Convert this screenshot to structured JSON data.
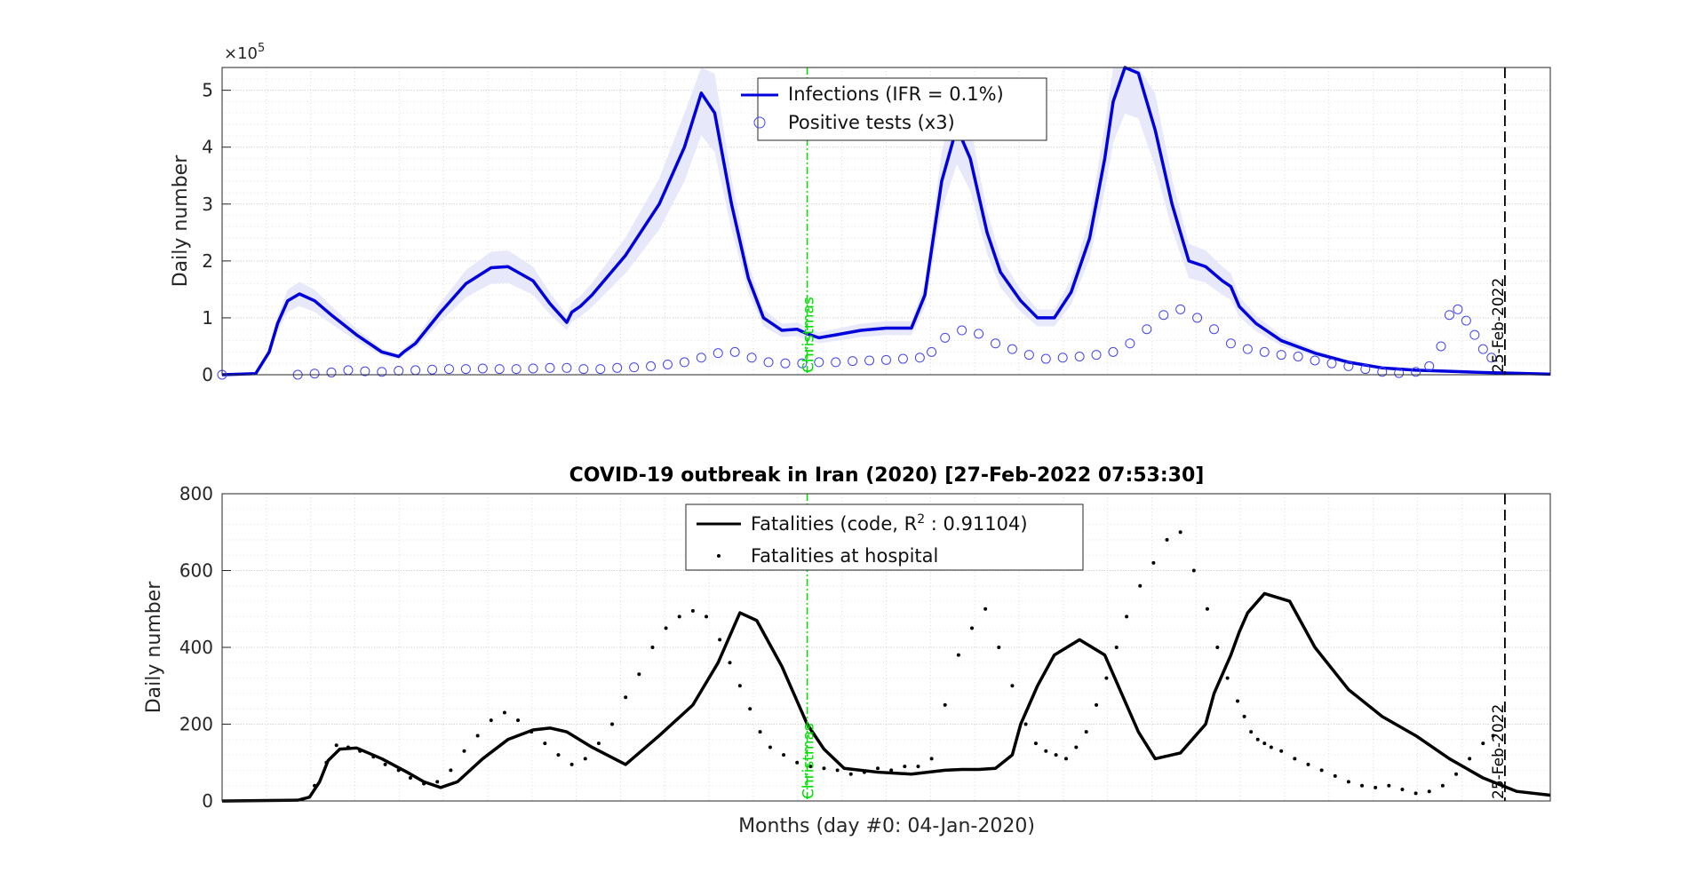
{
  "chart_data": [
    {
      "type": "line",
      "panel": "top",
      "title": "",
      "xlabel": "",
      "ylabel": "Daily number",
      "y_multiplier": "×10",
      "y_multiplier_exp": "5",
      "xlim": [
        0,
        790
      ],
      "ylim": [
        0,
        5.4
      ],
      "yticks": [
        0,
        1,
        2,
        3,
        4,
        5
      ],
      "grid": true,
      "legend_position": "top-center",
      "colors": {
        "line": "#0000dd",
        "band": "#e8e8fb",
        "markers": "#4444ee",
        "christmas": "#00dd00",
        "marker_line": "#000000"
      },
      "series": [
        {
          "name": "Infections (IFR = 0.1%)",
          "style": "line",
          "x": [
            0,
            20,
            28,
            33,
            39,
            46,
            55,
            65,
            80,
            95,
            105,
            108,
            115,
            130,
            145,
            160,
            170,
            185,
            195,
            205,
            208,
            213,
            220,
            240,
            260,
            275,
            285,
            293,
            303,
            313,
            322,
            333,
            342,
            348,
            355,
            365,
            380,
            395,
            410,
            418,
            422,
            428,
            437,
            445,
            455,
            463,
            475,
            485,
            495,
            505,
            516,
            525,
            530,
            537,
            545,
            555,
            565,
            575,
            585,
            595,
            600,
            605,
            615,
            630,
            650,
            670,
            690,
            710,
            730,
            750,
            770,
            790
          ],
          "y": [
            0,
            0.02,
            0.4,
            0.9,
            1.3,
            1.42,
            1.3,
            1.05,
            0.7,
            0.4,
            0.32,
            0.4,
            0.55,
            1.1,
            1.6,
            1.88,
            1.9,
            1.65,
            1.25,
            0.92,
            1.1,
            1.2,
            1.4,
            2.1,
            3.0,
            4.0,
            4.95,
            4.6,
            3.0,
            1.7,
            1.0,
            0.78,
            0.8,
            0.72,
            0.65,
            0.7,
            0.78,
            0.82,
            0.82,
            1.4,
            2.2,
            3.4,
            4.35,
            3.8,
            2.5,
            1.8,
            1.3,
            1.0,
            1.0,
            1.45,
            2.4,
            3.8,
            4.8,
            5.4,
            5.3,
            4.3,
            3.0,
            2.0,
            1.9,
            1.65,
            1.55,
            1.2,
            0.9,
            0.6,
            0.38,
            0.22,
            0.12,
            0.08,
            0.06,
            0.04,
            0.025,
            0.01
          ]
        },
        {
          "name": "Positive tests (x3)",
          "style": "markers",
          "x": [
            0,
            45,
            55,
            65,
            75,
            85,
            95,
            105,
            115,
            125,
            135,
            145,
            155,
            165,
            175,
            185,
            195,
            205,
            215,
            225,
            235,
            245,
            255,
            265,
            275,
            285,
            295,
            305,
            315,
            325,
            335,
            345,
            355,
            365,
            375,
            385,
            395,
            405,
            415,
            422,
            430,
            440,
            450,
            460,
            470,
            480,
            490,
            500,
            510,
            520,
            530,
            540,
            550,
            560,
            570,
            580,
            590,
            600,
            610,
            620,
            630,
            640,
            650,
            660,
            670,
            680,
            690,
            700,
            710,
            718,
            725,
            730,
            735,
            740,
            745,
            750,
            755
          ],
          "y": [
            0,
            0,
            0.02,
            0.04,
            0.08,
            0.06,
            0.05,
            0.07,
            0.08,
            0.09,
            0.1,
            0.1,
            0.11,
            0.1,
            0.1,
            0.11,
            0.12,
            0.12,
            0.1,
            0.1,
            0.12,
            0.13,
            0.15,
            0.18,
            0.22,
            0.3,
            0.38,
            0.4,
            0.3,
            0.22,
            0.2,
            0.2,
            0.22,
            0.22,
            0.24,
            0.25,
            0.26,
            0.28,
            0.3,
            0.4,
            0.65,
            0.78,
            0.72,
            0.55,
            0.45,
            0.35,
            0.28,
            0.3,
            0.32,
            0.35,
            0.4,
            0.55,
            0.8,
            1.05,
            1.15,
            1.0,
            0.8,
            0.55,
            0.45,
            0.4,
            0.35,
            0.32,
            0.25,
            0.2,
            0.15,
            0.1,
            0.05,
            0.03,
            0.05,
            0.15,
            0.5,
            1.05,
            1.15,
            0.95,
            0.7,
            0.45,
            0.3
          ]
        }
      ],
      "vlines": [
        {
          "label": "Christmas",
          "x": 348,
          "style": "dash-dot"
        },
        {
          "label": "25-Feb-2022",
          "x": 763,
          "style": "dashed"
        }
      ]
    },
    {
      "type": "line",
      "panel": "bottom",
      "title": "COVID-19 outbreak in Iran (2020) [27-Feb-2022 07:53:30]",
      "xlabel": "Months (day #0: 04-Jan-2020)",
      "ylabel": "Daily number",
      "xlim": [
        0,
        790
      ],
      "ylim": [
        0,
        800
      ],
      "yticks": [
        0,
        200,
        400,
        600,
        800
      ],
      "grid": true,
      "legend_position": "top-center",
      "colors": {
        "line": "#000000",
        "points": "#000000",
        "christmas": "#00dd00"
      },
      "series": [
        {
          "name": "Fatalities (code, R",
          "name_sup": "2",
          "name_tail": " : 0.91104)",
          "style": "line",
          "x": [
            0,
            45,
            52,
            58,
            63,
            70,
            80,
            95,
            110,
            120,
            130,
            140,
            155,
            170,
            185,
            195,
            205,
            220,
            240,
            260,
            280,
            295,
            303,
            308,
            318,
            333,
            348,
            358,
            370,
            390,
            410,
            430,
            440,
            450,
            460,
            470,
            475,
            485,
            495,
            510,
            525,
            535,
            545,
            555,
            570,
            585,
            590,
            600,
            605,
            610,
            620,
            635,
            650,
            670,
            690,
            710,
            730,
            750,
            770,
            790
          ],
          "y": [
            0,
            2,
            10,
            50,
            105,
            135,
            138,
            110,
            75,
            50,
            35,
            50,
            110,
            160,
            185,
            190,
            180,
            140,
            95,
            170,
            250,
            360,
            440,
            490,
            470,
            350,
            200,
            135,
            85,
            75,
            70,
            80,
            82,
            82,
            85,
            120,
            200,
            300,
            380,
            420,
            380,
            280,
            180,
            110,
            125,
            200,
            280,
            380,
            440,
            490,
            540,
            520,
            400,
            290,
            220,
            170,
            110,
            60,
            25,
            15
          ]
        },
        {
          "name": "Fatalities at hospital",
          "style": "points",
          "x": [
            48,
            55,
            62,
            68,
            75,
            82,
            90,
            97,
            105,
            112,
            120,
            128,
            136,
            144,
            152,
            160,
            168,
            176,
            184,
            192,
            200,
            208,
            216,
            224,
            232,
            240,
            248,
            256,
            264,
            272,
            280,
            288,
            296,
            302,
            308,
            314,
            320,
            326,
            334,
            342,
            350,
            358,
            366,
            374,
            382,
            390,
            398,
            406,
            414,
            422,
            430,
            438,
            446,
            454,
            462,
            470,
            478,
            484,
            490,
            496,
            502,
            508,
            514,
            520,
            526,
            532,
            538,
            546,
            554,
            562,
            570,
            578,
            586,
            592,
            598,
            604,
            608,
            612,
            616,
            620,
            624,
            630,
            638,
            646,
            654,
            662,
            670,
            678,
            686,
            694,
            702,
            710,
            718,
            726,
            734,
            742,
            750,
            756
          ],
          "y": [
            5,
            40,
            100,
            145,
            140,
            130,
            115,
            95,
            80,
            60,
            45,
            50,
            80,
            130,
            170,
            210,
            230,
            210,
            180,
            150,
            120,
            95,
            110,
            150,
            200,
            270,
            330,
            400,
            450,
            480,
            495,
            480,
            420,
            360,
            300,
            240,
            180,
            140,
            120,
            100,
            90,
            85,
            80,
            70,
            75,
            85,
            80,
            90,
            90,
            110,
            250,
            380,
            450,
            500,
            400,
            300,
            200,
            150,
            130,
            120,
            110,
            140,
            180,
            250,
            320,
            400,
            480,
            560,
            620,
            680,
            700,
            600,
            500,
            400,
            320,
            260,
            220,
            180,
            160,
            150,
            140,
            130,
            110,
            95,
            80,
            65,
            50,
            40,
            35,
            40,
            30,
            20,
            25,
            40,
            70,
            110,
            150,
            170
          ]
        }
      ],
      "vlines": [
        {
          "label": "Christmas",
          "x": 348,
          "style": "dash-dot"
        },
        {
          "label": "25-Feb-2022",
          "x": 763,
          "style": "dashed"
        }
      ]
    }
  ]
}
